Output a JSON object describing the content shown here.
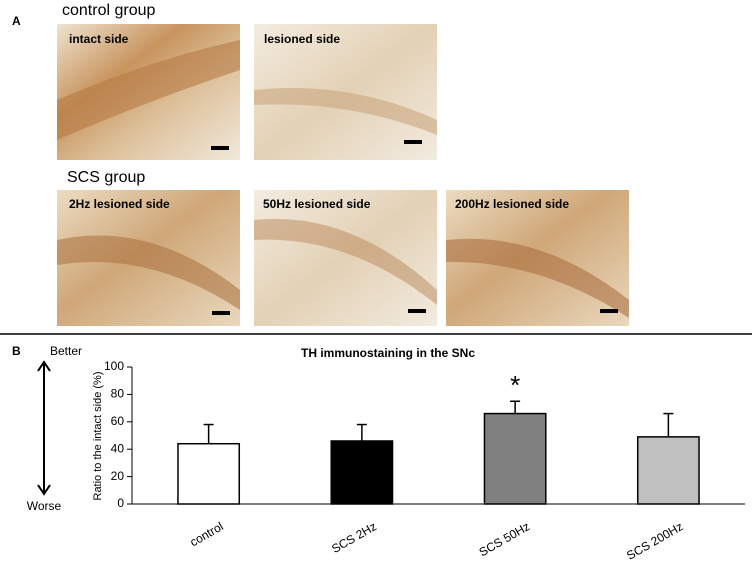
{
  "panel_a": {
    "label": "A",
    "groups": [
      {
        "title": "control group",
        "images": [
          "intact side",
          "lesioned side"
        ]
      },
      {
        "title": "SCS group",
        "images": [
          "2Hz lesioned side",
          "50Hz lesioned side",
          "200Hz lesioned side"
        ]
      }
    ]
  },
  "chart_data": {
    "type": "bar",
    "panel_label": "B",
    "title": "TH immunostaining in the SNc",
    "y_label": "Ratio to the intact side (%)",
    "direction_labels": [
      "Better",
      "Worse"
    ],
    "categories": [
      "control",
      "SCS 2Hz",
      "SCS 50Hz",
      "SCS 200Hz"
    ],
    "values": [
      44,
      46,
      66,
      49
    ],
    "errors": [
      14,
      12,
      9,
      17
    ],
    "colors": [
      "#ffffff",
      "#000000",
      "#808080",
      "#c0c0c0"
    ],
    "significance_labels": [
      null,
      null,
      "*",
      null
    ],
    "ylim": [
      0,
      100
    ],
    "yticks": [
      0,
      20,
      40,
      60,
      80,
      100
    ],
    "grid": false
  }
}
